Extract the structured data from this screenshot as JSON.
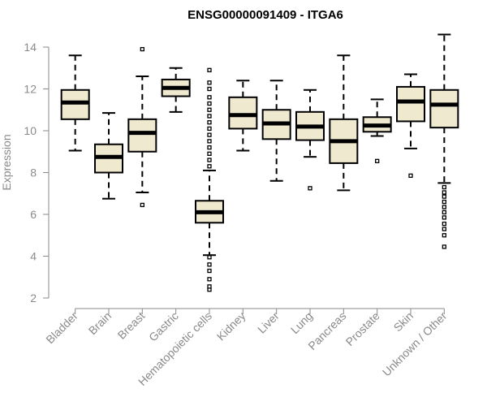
{
  "chart_data": {
    "type": "boxplot",
    "title": "ENSG00000091409 - ITGA6",
    "ylabel": "Expression",
    "xlabel": "",
    "ylim": [
      2,
      14.5
    ],
    "yticks": [
      2,
      4,
      6,
      8,
      10,
      12,
      14
    ],
    "box_fill": "#efe9cf",
    "stroke": "#000000",
    "axis_color": "#8a8a8a",
    "categories": [
      "Bladder",
      "Brain",
      "Breast",
      "Gastric",
      "Hematopoietic cells",
      "Kidney",
      "Liver",
      "Lung",
      "Pancreas",
      "Prostate",
      "Skin",
      "Unknown / Other"
    ],
    "boxes": [
      {
        "category": "Bladder",
        "whisker_low": 9.05,
        "q1": 10.55,
        "median": 11.35,
        "q3": 11.95,
        "whisker_high": 13.6,
        "outliers": []
      },
      {
        "category": "Brain",
        "whisker_low": 6.75,
        "q1": 8.0,
        "median": 8.75,
        "q3": 9.35,
        "whisker_high": 10.85,
        "outliers": []
      },
      {
        "category": "Breast",
        "whisker_low": 7.05,
        "q1": 9.0,
        "median": 9.9,
        "q3": 10.55,
        "whisker_high": 12.6,
        "outliers": [
          6.45,
          13.9
        ]
      },
      {
        "category": "Gastric",
        "whisker_low": 10.9,
        "q1": 11.65,
        "median": 12.05,
        "q3": 12.45,
        "whisker_high": 13.0,
        "outliers": []
      },
      {
        "category": "Hematopoietic cells",
        "whisker_low": 4.05,
        "q1": 5.6,
        "median": 6.1,
        "q3": 6.65,
        "whisker_high": 8.1,
        "outliers": [
          2.4,
          2.55,
          2.9,
          3.3,
          3.6,
          3.95,
          8.3,
          8.6,
          8.9,
          9.2,
          9.5,
          9.8,
          10.1,
          10.4,
          10.7,
          11.0,
          11.3,
          11.6,
          12.0,
          12.3,
          12.9
        ]
      },
      {
        "category": "Kidney",
        "whisker_low": 9.05,
        "q1": 10.1,
        "median": 10.75,
        "q3": 11.6,
        "whisker_high": 12.4,
        "outliers": []
      },
      {
        "category": "Liver",
        "whisker_low": 7.6,
        "q1": 9.6,
        "median": 10.35,
        "q3": 11.0,
        "whisker_high": 12.4,
        "outliers": []
      },
      {
        "category": "Lung",
        "whisker_low": 8.75,
        "q1": 9.55,
        "median": 10.2,
        "q3": 10.9,
        "whisker_high": 11.95,
        "outliers": [
          7.25
        ]
      },
      {
        "category": "Pancreas",
        "whisker_low": 7.15,
        "q1": 8.45,
        "median": 9.5,
        "q3": 10.55,
        "whisker_high": 13.6,
        "outliers": []
      },
      {
        "category": "Prostate",
        "whisker_low": 9.75,
        "q1": 9.95,
        "median": 10.25,
        "q3": 10.65,
        "whisker_high": 11.5,
        "outliers": [
          8.55
        ]
      },
      {
        "category": "Skin",
        "whisker_low": 9.15,
        "q1": 10.45,
        "median": 11.4,
        "q3": 12.1,
        "whisker_high": 12.7,
        "outliers": [
          7.85
        ]
      },
      {
        "category": "Unknown / Other",
        "whisker_low": 7.5,
        "q1": 10.15,
        "median": 11.25,
        "q3": 11.95,
        "whisker_high": 14.6,
        "outliers": [
          4.45,
          5.0,
          5.3,
          5.55,
          5.85,
          6.1,
          6.35,
          6.6,
          6.85,
          7.05,
          7.3
        ]
      }
    ]
  }
}
